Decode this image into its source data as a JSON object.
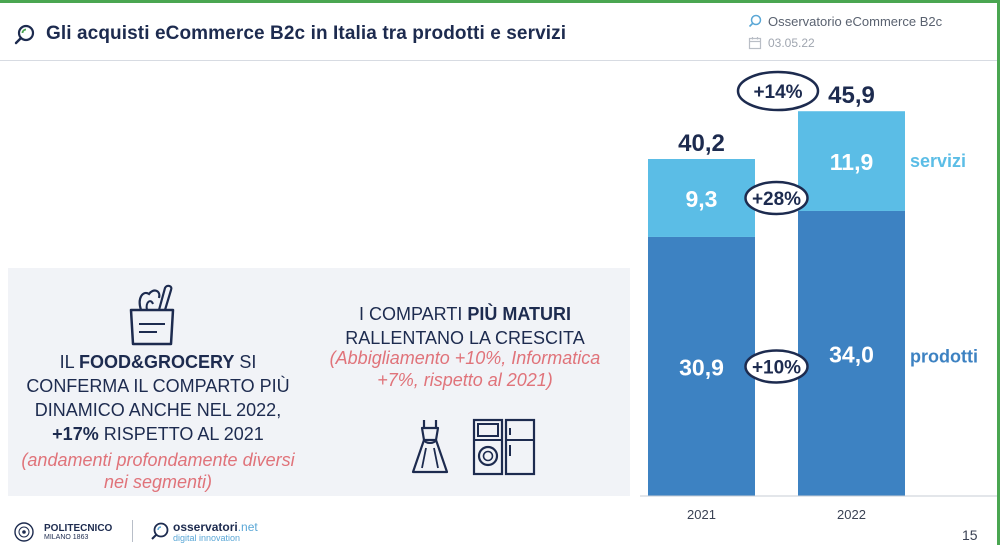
{
  "header": {
    "title": "Gli acquisti eCommerce B2c in Italia tra prodotti e servizi",
    "source": "Osservatorio eCommerce B2c",
    "date": "03.05.22",
    "title_icon": "search-icon",
    "source_icon": "search-icon",
    "date_icon": "calendar-icon"
  },
  "food": {
    "line1_a": "IL ",
    "line1_b": "FOOD&GROCERY",
    "line1_c": " SI",
    "line2": "CONFERMA IL COMPARTO PIÙ",
    "line3": "DINAMICO ANCHE NEL 2022,",
    "line4_a": "+17%",
    "line4_b": " RISPETTO AL 2021",
    "note": "(andamenti profondamente diversi nei segmenti)",
    "icon": "grocery-bag-icon"
  },
  "mature": {
    "line1_a": "I COMPARTI ",
    "line1_b": "PIÙ MATURI",
    "line2": "RALLENTANO LA CRESCITA",
    "note": "(Abbigliamento +10%, Informatica +7%, rispetto al 2021)",
    "icons": [
      "dress-icon",
      "appliances-icon"
    ]
  },
  "footer": {
    "polimi": "POLITECNICO",
    "polimi_sub": "MILANO 1863",
    "oss_a": "osservatori",
    "oss_b": ".net",
    "oss_sub": "digital innovation",
    "page": "15"
  },
  "colors": {
    "prodotti": "#3d82c2",
    "servizi": "#5bbde6",
    "navy": "#1d2b4f",
    "note": "#e0737a"
  },
  "chart_data": {
    "type": "bar",
    "stacked": true,
    "categories": [
      "2021",
      "2022"
    ],
    "series": [
      {
        "name": "prodotti",
        "values": [
          30.9,
          34.0
        ],
        "labels": [
          "30,9",
          "34,0"
        ]
      },
      {
        "name": "servizi",
        "values": [
          9.3,
          11.9
        ],
        "labels": [
          "9,3",
          "11,9"
        ]
      }
    ],
    "totals": [
      "40,2",
      "45,9"
    ],
    "total_values": [
      40.2,
      45.9
    ],
    "growth": {
      "total": "+14%",
      "servizi": "+28%",
      "prodotti": "+10%"
    },
    "ylim": [
      0,
      47
    ]
  }
}
